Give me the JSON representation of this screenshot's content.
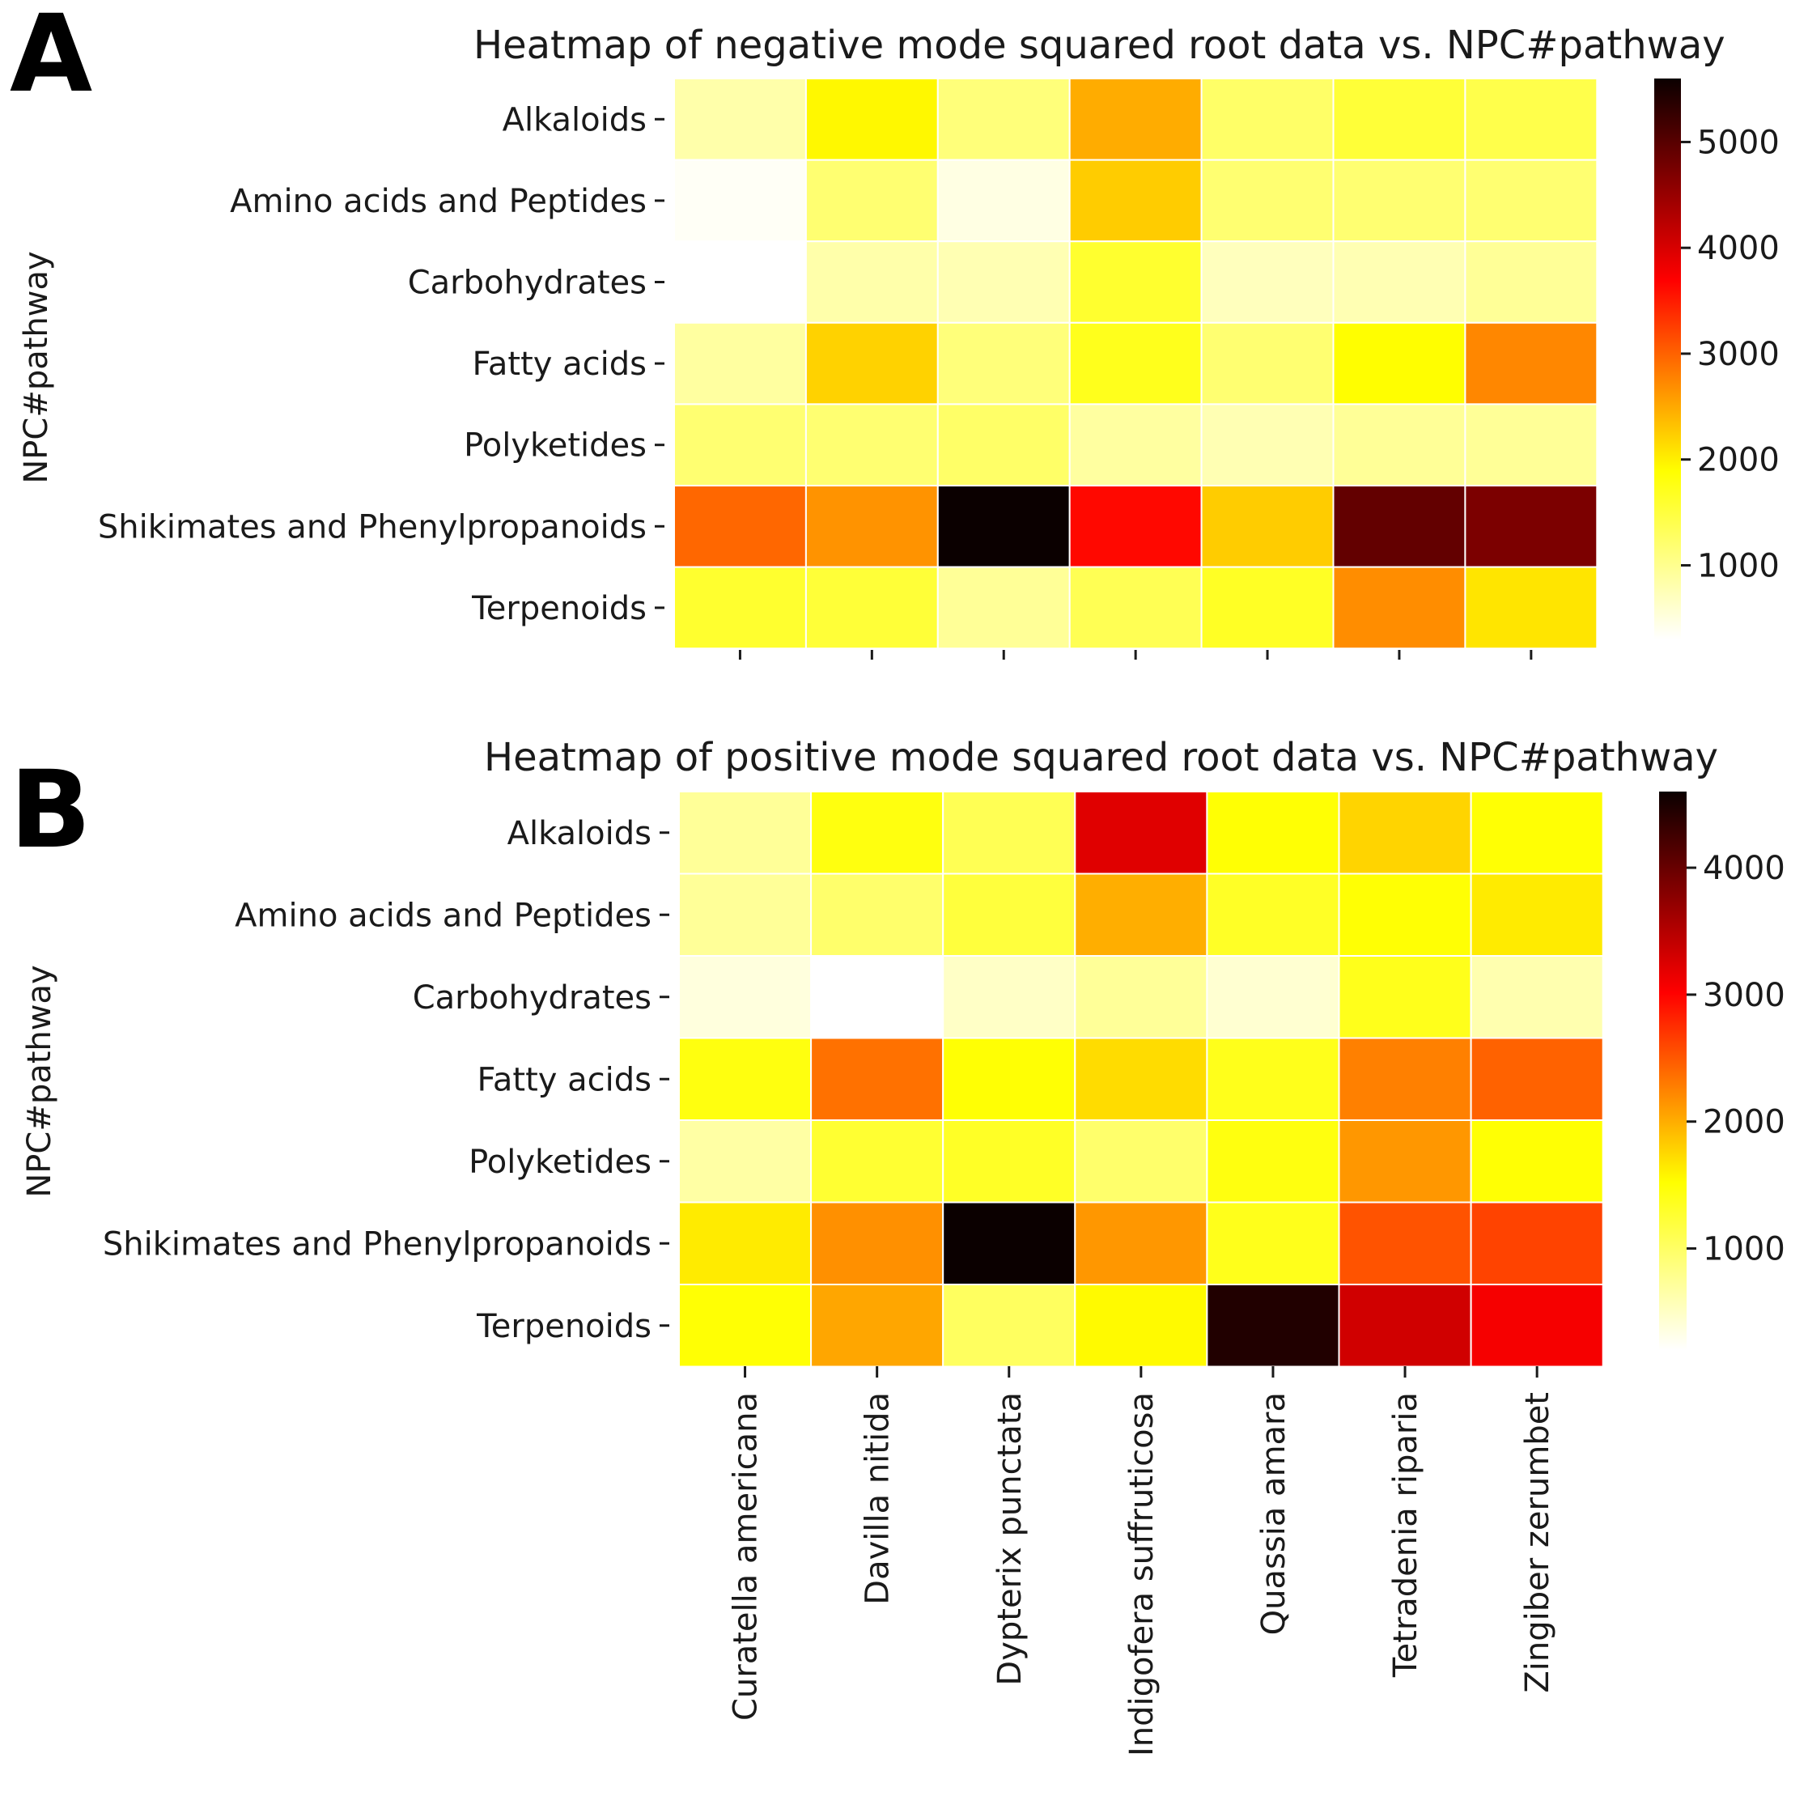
{
  "figure": {
    "columns": [
      "Curatella americana",
      "Davilla nitida",
      "Dypterix punctata",
      "Indigofera suffruticosa",
      "Quassia amara",
      "Tetradenia riparia",
      "Zingiber zerumbet"
    ]
  },
  "chart_data": [
    {
      "type": "heatmap",
      "panel": "A",
      "title": "Heatmap of negative mode squared root data vs. NPC#pathway",
      "ylabel": "NPC#pathway",
      "xlabel": "",
      "rows": [
        "Alkaloids",
        "Amino acids and Peptides",
        "Carbohydrates",
        "Fatty acids",
        "Polyketides",
        "Shikimates and Phenylpropanoids",
        "Terpenoids"
      ],
      "columns": [
        "Curatella americana",
        "Davilla nitida",
        "Dypterix punctata",
        "Indigofera suffruticosa",
        "Quassia amara",
        "Tetradenia riparia",
        "Zingiber zerumbet"
      ],
      "values": [
        [
          750,
          1700,
          1000,
          2300,
          1100,
          1350,
          1250
        ],
        [
          350,
          1050,
          450,
          2050,
          1050,
          1050,
          1050
        ],
        [
          300,
          750,
          700,
          1400,
          650,
          700,
          850
        ],
        [
          800,
          2000,
          1000,
          1500,
          1050,
          1650,
          2600
        ],
        [
          1050,
          1050,
          1100,
          800,
          700,
          850,
          850
        ],
        [
          2850,
          2500,
          5600,
          3600,
          2050,
          4900,
          4700
        ],
        [
          1400,
          1350,
          850,
          1200,
          1450,
          2550,
          1850
        ]
      ],
      "colorbar": {
        "colormap": "hot_r",
        "vmin": 300,
        "vmax": 5600,
        "ticks": [
          1000,
          2000,
          3000,
          4000,
          5000
        ]
      },
      "show_xticklabels": false
    },
    {
      "type": "heatmap",
      "panel": "B",
      "title": "Heatmap of positive mode squared root data vs. NPC#pathway",
      "ylabel": "NPC#pathway",
      "xlabel": "",
      "rows": [
        "Alkaloids",
        "Amino acids and Peptides",
        "Carbohydrates",
        "Fatty acids",
        "Polyketides",
        "Shikimates and Phenylpropanoids",
        "Terpenoids"
      ],
      "columns": [
        "Curatella americana",
        "Davilla nitida",
        "Dypterix punctata",
        "Indigofera suffruticosa",
        "Quassia amara",
        "Tetradenia riparia",
        "Zingiber zerumbet"
      ],
      "values": [
        [
          650,
          1250,
          950,
          3200,
          1300,
          1600,
          1300
        ],
        [
          650,
          850,
          1050,
          1850,
          1150,
          1300,
          1450
        ],
        [
          350,
          200,
          450,
          650,
          400,
          1200,
          550
        ],
        [
          1250,
          2250,
          1300,
          1550,
          1200,
          2150,
          2350
        ],
        [
          600,
          1100,
          1150,
          850,
          1250,
          2000,
          1300
        ],
        [
          1450,
          2050,
          4600,
          2000,
          1200,
          2450,
          2550
        ],
        [
          1300,
          1900,
          900,
          1350,
          4450,
          3300,
          3050
        ]
      ],
      "colorbar": {
        "colormap": "hot_r",
        "vmin": 200,
        "vmax": 4600,
        "ticks": [
          1000,
          2000,
          3000,
          4000
        ]
      },
      "show_xticklabels": true
    }
  ]
}
